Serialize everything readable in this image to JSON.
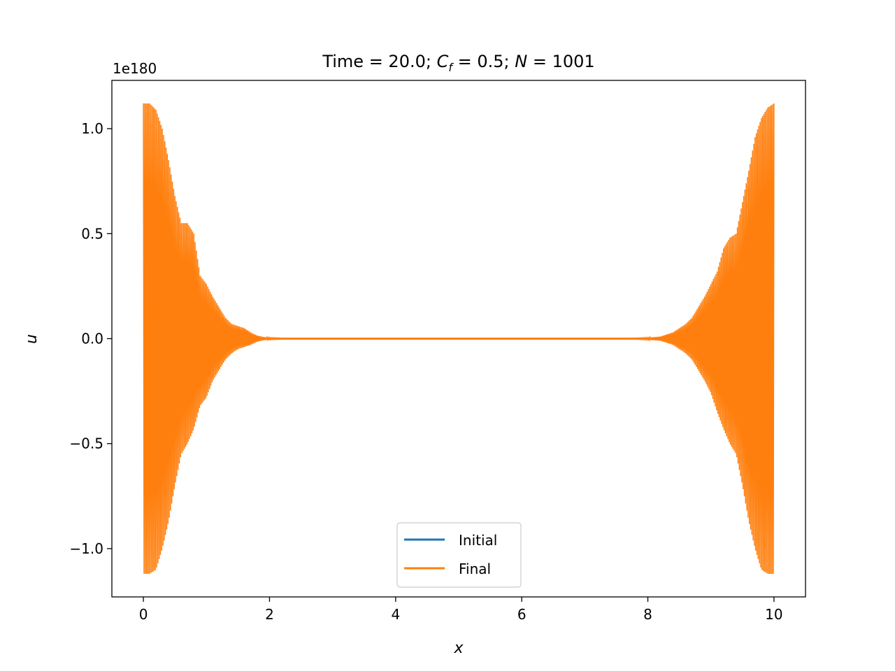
{
  "chart_data": {
    "type": "line",
    "title": "Time = 20.0; C_f = 0.5;  N = 1001",
    "title_parts": {
      "prefix": "Time = 20.0; ",
      "cf_symbol": "C",
      "cf_subscript": "f",
      "cf_value": " = 0.5;  ",
      "n_symbol": "N",
      "n_value": " = 1001"
    },
    "xlabel": "x",
    "ylabel": "u",
    "y_offset_text": "1e180",
    "xlim": [
      -0.5,
      10.5
    ],
    "ylim": [
      -1.23,
      1.23
    ],
    "xticks": [
      0,
      2,
      4,
      6,
      8,
      10
    ],
    "xtick_labels": [
      "0",
      "2",
      "4",
      "6",
      "8",
      "10"
    ],
    "yticks": [
      -1.0,
      -0.5,
      0.0,
      0.5,
      1.0
    ],
    "ytick_labels": [
      "−1.0",
      "−0.5",
      "0.0",
      "0.5",
      "1.0"
    ],
    "grid": false,
    "legend_position": "lower center",
    "series": [
      {
        "name": "Initial",
        "color": "#1f77b4",
        "style": "line",
        "x": [
          0,
          10
        ],
        "y": [
          0,
          0
        ]
      },
      {
        "name": "Final",
        "color": "#ff7f0e",
        "style": "oscillating-envelope",
        "note_units": "y values in units of 1e180",
        "envelope_x": [
          0,
          0.1,
          0.2,
          0.3,
          0.4,
          0.5,
          0.6,
          0.7,
          0.8,
          0.9,
          1.0,
          1.1,
          1.2,
          1.3,
          1.4,
          1.5,
          1.6,
          1.7,
          1.8,
          1.9,
          2.0,
          2.2,
          2.5,
          3.0,
          4.0,
          5.0,
          6.0,
          7.0,
          7.5,
          7.8,
          8.0,
          8.2,
          8.4,
          8.6,
          8.7,
          8.8,
          8.9,
          9.0,
          9.1,
          9.2,
          9.3,
          9.4,
          9.5,
          9.6,
          9.7,
          9.8,
          9.9,
          10.0
        ],
        "envelope_upper": [
          1.12,
          1.12,
          1.09,
          1.0,
          0.85,
          0.68,
          0.55,
          0.55,
          0.5,
          0.3,
          0.26,
          0.2,
          0.15,
          0.1,
          0.07,
          0.06,
          0.05,
          0.03,
          0.015,
          0.008,
          0.004,
          0.002,
          0.001,
          0.0005,
          0.0003,
          0.0003,
          0.0003,
          0.0005,
          0.001,
          0.002,
          0.004,
          0.01,
          0.03,
          0.07,
          0.1,
          0.15,
          0.2,
          0.26,
          0.32,
          0.43,
          0.48,
          0.5,
          0.65,
          0.8,
          0.96,
          1.05,
          1.1,
          1.12
        ],
        "envelope_lower": [
          -1.12,
          -1.12,
          -1.1,
          -1.0,
          -0.87,
          -0.7,
          -0.55,
          -0.5,
          -0.43,
          -0.32,
          -0.28,
          -0.2,
          -0.15,
          -0.1,
          -0.07,
          -0.05,
          -0.04,
          -0.03,
          -0.015,
          -0.008,
          -0.004,
          -0.002,
          -0.001,
          -0.0005,
          -0.0003,
          -0.0003,
          -0.0003,
          -0.0005,
          -0.001,
          -0.002,
          -0.005,
          -0.01,
          -0.03,
          -0.07,
          -0.1,
          -0.15,
          -0.2,
          -0.26,
          -0.35,
          -0.43,
          -0.5,
          -0.55,
          -0.7,
          -0.87,
          -1.0,
          -1.1,
          -1.12,
          -1.12
        ]
      }
    ]
  }
}
